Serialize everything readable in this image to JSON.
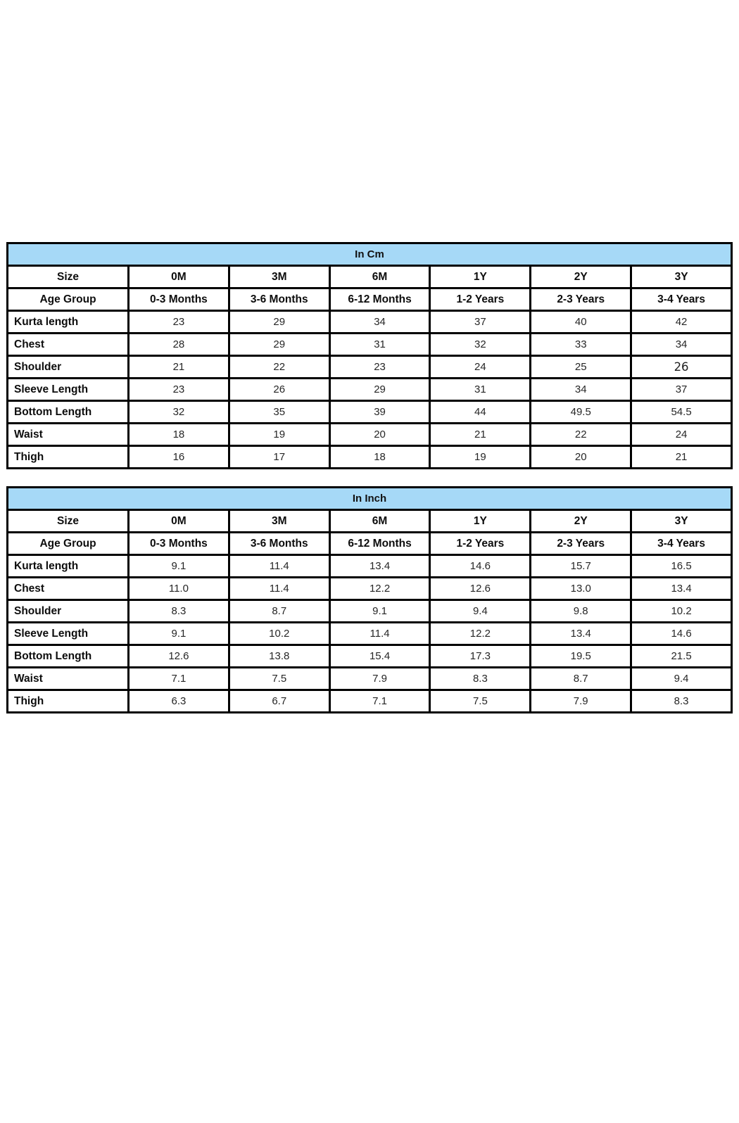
{
  "page": {
    "background": "#ffffff",
    "header_fill": "#a6d9f7",
    "border_color": "#000000",
    "value_text_color": "#262626"
  },
  "tables": [
    {
      "id": "cm",
      "title": "In Cm",
      "size_row": {
        "label": "Size",
        "values": [
          "0M",
          "3M",
          "6M",
          "1Y",
          "2Y",
          "3Y"
        ]
      },
      "age_row": {
        "label": "Age Group",
        "values": [
          "0-3 Months",
          "3-6 Months",
          "6-12 Months",
          "1-2 Years",
          "2-3 Years",
          "3-4 Years"
        ]
      },
      "rows": [
        {
          "label": "Kurta length",
          "values": [
            "23",
            "29",
            "34",
            "37",
            "40",
            "42"
          ]
        },
        {
          "label": "Chest",
          "values": [
            "28",
            "29",
            "31",
            "32",
            "33",
            "34"
          ]
        },
        {
          "label": "Shoulder",
          "values": [
            "21",
            "22",
            "23",
            "24",
            "25",
            "26"
          ],
          "alt_cell": 5
        },
        {
          "label": "Sleeve Length",
          "values": [
            "23",
            "26",
            "29",
            "31",
            "34",
            "37"
          ]
        },
        {
          "label": "Bottom Length",
          "values": [
            "32",
            "35",
            "39",
            "44",
            "49.5",
            "54.5"
          ]
        },
        {
          "label": "Waist",
          "values": [
            "18",
            "19",
            "20",
            "21",
            "22",
            "24"
          ]
        },
        {
          "label": "Thigh",
          "values": [
            "16",
            "17",
            "18",
            "19",
            "20",
            "21"
          ]
        }
      ]
    },
    {
      "id": "inch",
      "title": "In Inch",
      "size_row": {
        "label": "Size",
        "values": [
          "0M",
          "3M",
          "6M",
          "1Y",
          "2Y",
          "3Y"
        ]
      },
      "age_row": {
        "label": "Age Group",
        "values": [
          "0-3 Months",
          "3-6 Months",
          "6-12 Months",
          "1-2 Years",
          "2-3 Years",
          "3-4 Years"
        ]
      },
      "rows": [
        {
          "label": "Kurta length",
          "values": [
            "9.1",
            "11.4",
            "13.4",
            "14.6",
            "15.7",
            "16.5"
          ]
        },
        {
          "label": "Chest",
          "values": [
            "11.0",
            "11.4",
            "12.2",
            "12.6",
            "13.0",
            "13.4"
          ]
        },
        {
          "label": "Shoulder",
          "values": [
            "8.3",
            "8.7",
            "9.1",
            "9.4",
            "9.8",
            "10.2"
          ]
        },
        {
          "label": "Sleeve Length",
          "values": [
            "9.1",
            "10.2",
            "11.4",
            "12.2",
            "13.4",
            "14.6"
          ]
        },
        {
          "label": "Bottom Length",
          "values": [
            "12.6",
            "13.8",
            "15.4",
            "17.3",
            "19.5",
            "21.5"
          ]
        },
        {
          "label": "Waist",
          "values": [
            "7.1",
            "7.5",
            "7.9",
            "8.3",
            "8.7",
            "9.4"
          ]
        },
        {
          "label": "Thigh",
          "values": [
            "6.3",
            "6.7",
            "7.1",
            "7.5",
            "7.9",
            "8.3"
          ]
        }
      ]
    }
  ]
}
